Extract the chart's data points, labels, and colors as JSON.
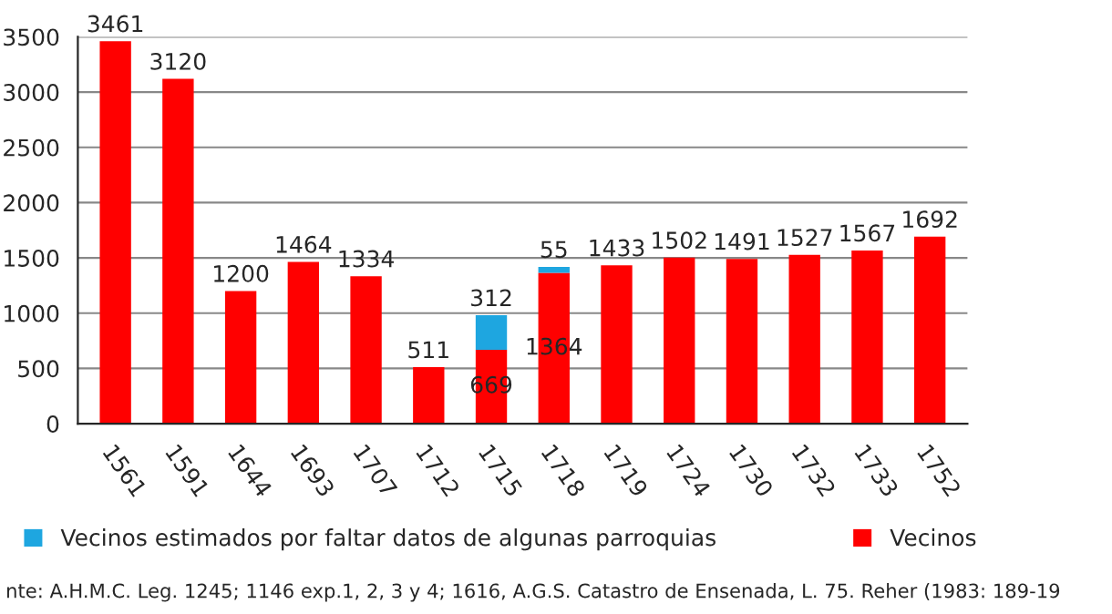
{
  "chart_data": {
    "type": "bar",
    "stacked": true,
    "categories": [
      "1561",
      "1591",
      "1644",
      "1693",
      "1707",
      "1712",
      "1715",
      "1718",
      "1719",
      "1724",
      "1730",
      "1732",
      "1733",
      "1752"
    ],
    "series": [
      {
        "name": "Vecinos",
        "color": "#ff0000",
        "values": [
          3461,
          3120,
          1200,
          1464,
          1334,
          511,
          669,
          1364,
          1433,
          1502,
          1491,
          1527,
          1567,
          1692
        ]
      },
      {
        "name": "Vecinos estimados por faltar datos de algunas parroquias",
        "color": "#1ea6e0",
        "values": [
          null,
          null,
          null,
          null,
          null,
          null,
          312,
          55,
          null,
          null,
          null,
          null,
          null,
          null
        ]
      }
    ],
    "ylim": [
      0,
      3500
    ],
    "yticks": [
      0,
      500,
      1000,
      1500,
      2000,
      2500,
      3000,
      3500
    ],
    "grid": "y",
    "legend": "bottom",
    "data_labels": true,
    "annotations": [
      "nte: A.H.M.C. Leg. 1245; 1146 exp.1, 2, 3 y 4; 1616, A.G.S. Catastro de Ensenada, L. 75. Reher (1983: 189-19"
    ]
  }
}
